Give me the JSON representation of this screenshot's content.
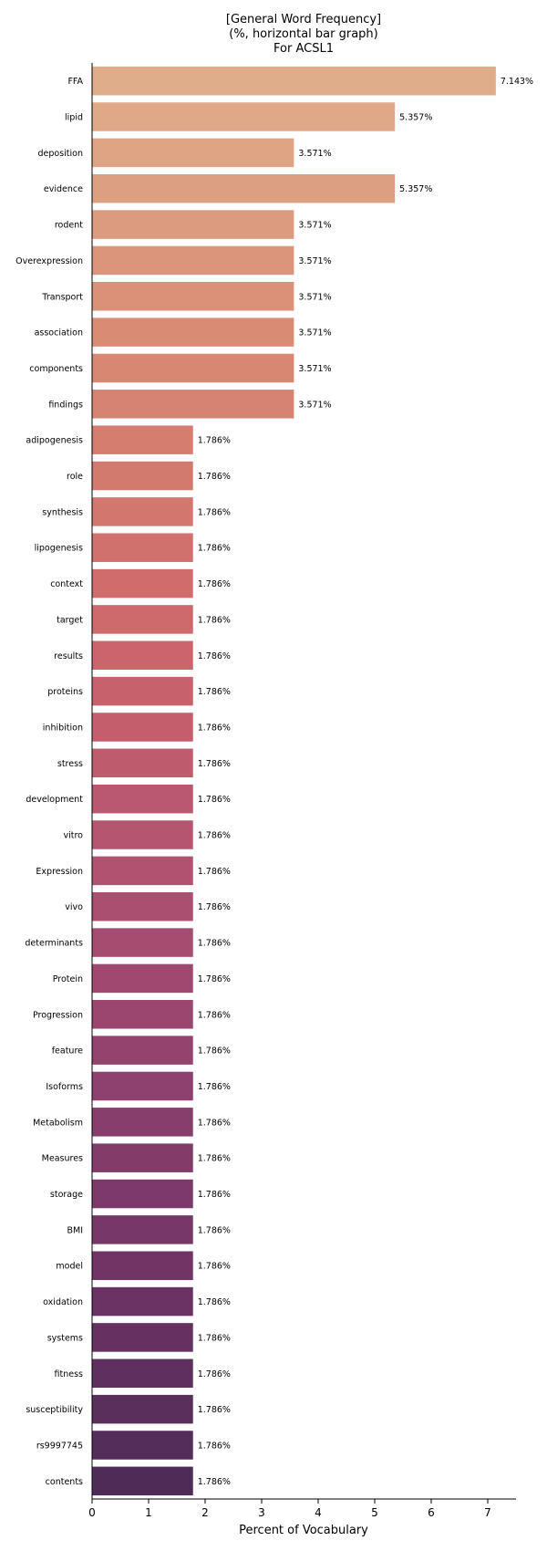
{
  "chart_data": {
    "type": "bar",
    "orientation": "horizontal",
    "title": [
      "[General Word Frequency]",
      "(%, horizontal bar graph)",
      "For ACSL1"
    ],
    "xlabel": "Percent of Vocabulary",
    "xlim": [
      0,
      7.5
    ],
    "xticks": [
      0,
      1,
      2,
      3,
      4,
      5,
      6,
      7
    ],
    "value_suffix": "%",
    "grid": false,
    "colormap": "flare",
    "categories": [
      "FFA",
      "lipid",
      "deposition",
      "evidence",
      "rodent",
      "Overexpression",
      "Transport",
      "association",
      "components",
      "findings",
      "adipogenesis",
      "role",
      "synthesis",
      "lipogenesis",
      "context",
      "target",
      "results",
      "proteins",
      "inhibition",
      "stress",
      "development",
      "vitro",
      "Expression",
      "vivo",
      "determinants",
      "Protein",
      "Progression",
      "feature",
      "Isoforms",
      "Metabolism",
      "Measures",
      "storage",
      "BMI",
      "model",
      "oxidation",
      "systems",
      "fitness",
      "susceptibility",
      "rs9997745",
      "contents"
    ],
    "values": [
      7.143,
      5.357,
      3.571,
      5.357,
      3.571,
      3.571,
      3.571,
      3.571,
      3.571,
      3.571,
      1.786,
      1.786,
      1.786,
      1.786,
      1.786,
      1.786,
      1.786,
      1.786,
      1.786,
      1.786,
      1.786,
      1.786,
      1.786,
      1.786,
      1.786,
      1.786,
      1.786,
      1.786,
      1.786,
      1.786,
      1.786,
      1.786,
      1.786,
      1.786,
      1.786,
      1.786,
      1.786,
      1.786,
      1.786,
      1.786
    ]
  }
}
